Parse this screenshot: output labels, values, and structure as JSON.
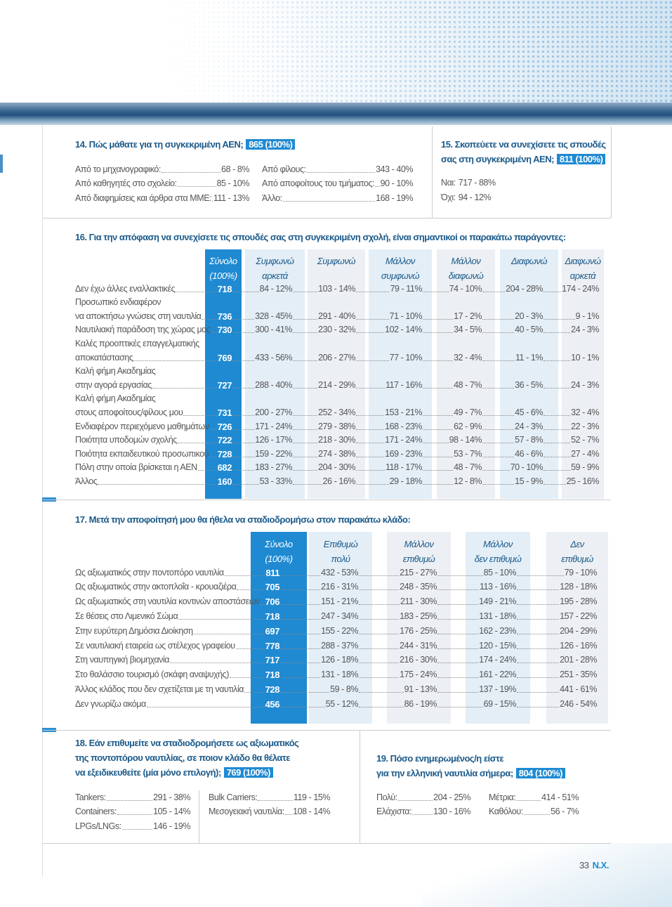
{
  "q14": {
    "title": "14. Πώς μάθατε για τη συγκεκριμένη ΑΕΝ;",
    "total": "865 (100%)",
    "columns": [
      [
        {
          "label": "Από το μηχανογραφικό:",
          "value": "68 - 8%"
        },
        {
          "label": "Από καθηγητές στο σχολείο:",
          "value": "85 - 10%"
        },
        {
          "label": "Από διαφημίσεις και άρθρα στα ΜΜΕ:",
          "value": "111 - 13%"
        }
      ],
      [
        {
          "label": "Από φίλους:",
          "value": "343 - 40%"
        },
        {
          "label": "Από αποφοίτους του τμήματος:",
          "value": "90 - 10%"
        },
        {
          "label": "Άλλο:",
          "value": "168 - 19%"
        }
      ]
    ]
  },
  "q15": {
    "title_lines": [
      "15. Σκοπεύετε να συνεχίσετε τις σπουδές",
      "σας στη συγκεκριμένη ΑΕΝ;"
    ],
    "total": "811 (100%)",
    "items": [
      {
        "label": "Ναι:",
        "value": "717 - 88%"
      },
      {
        "label": "Όχι:",
        "value": "94 - 12%"
      }
    ]
  },
  "q16": {
    "title": "16. Για την  απόφαση να συνεχίσετε τις σπουδές σας στη συγκεκριμένη σχολή, είναι σημαντικοί οι παρακάτω παράγοντες:",
    "headers": [
      [
        "Σύνολο",
        "(100%)"
      ],
      [
        "Συμφωνώ",
        "αρκετά"
      ],
      [
        "Συμφωνώ"
      ],
      [
        "Μάλλον",
        "συμφωνώ"
      ],
      [
        "Μάλλον",
        "διαφωνώ"
      ],
      [
        "Διαφωνώ"
      ],
      [
        "Διαφωνώ",
        "αρκετά"
      ]
    ],
    "rows": [
      {
        "label": [
          "Δεν έχω άλλες εναλλακτικές"
        ],
        "total": "718",
        "values": [
          "84 - 12%",
          "103 - 14%",
          "79 - 11%",
          "74 - 10%",
          "204 - 28%",
          "174 - 24%"
        ]
      },
      {
        "label": [
          "Προσωπικό ενδιαφέρον",
          "να αποκτήσω γνώσεις στη ναυτιλία"
        ],
        "total": "736",
        "values": [
          "328 - 45%",
          "291 - 40%",
          "71 - 10%",
          "17 - 2%",
          "20 - 3%",
          "9 - 1%"
        ]
      },
      {
        "label": [
          "Ναυτιλιακή παράδοση της χώρας μας"
        ],
        "total": "730",
        "values": [
          "300 - 41%",
          "230 - 32%",
          "102 - 14%",
          "34 - 5%",
          "40 - 5%",
          "24 - 3%"
        ]
      },
      {
        "label": [
          "Καλές προοπτικές επαγγελματικής",
          "αποκατάστασης"
        ],
        "total": "769",
        "values": [
          "433 - 56%",
          "206 - 27%",
          "77 - 10%",
          "32 - 4%",
          "11 - 1%",
          "10 - 1%"
        ]
      },
      {
        "label": [
          "Καλή φήμη Ακαδημίας",
          "στην αγορά εργασίας"
        ],
        "total": "727",
        "values": [
          "288 - 40%",
          "214 - 29%",
          "117 - 16%",
          "48 - 7%",
          "36 - 5%",
          "24 - 3%"
        ]
      },
      {
        "label": [
          "Καλή φήμη Ακαδημίας",
          "στους αποφοίτους/φίλους μου"
        ],
        "total": "731",
        "values": [
          "200 - 27%",
          "252 - 34%",
          "153 - 21%",
          "49 - 7%",
          "45 - 6%",
          "32 - 4%"
        ]
      },
      {
        "label": [
          "Ενδιαφέρον περιεχόμενο μαθημάτων"
        ],
        "total": "726",
        "values": [
          "171 - 24%",
          "279 - 38%",
          "168 - 23%",
          "62 - 9%",
          "24 - 3%",
          "22 - 3%"
        ]
      },
      {
        "label": [
          "Ποιότητα υποδομών σχολής"
        ],
        "total": "722",
        "values": [
          "126 - 17%",
          "218 - 30%",
          "171 - 24%",
          "98 - 14%",
          "57 - 8%",
          "52 - 7%"
        ]
      },
      {
        "label": [
          "Ποιότητα εκπαιδευτικού προσωπικού"
        ],
        "total": "728",
        "values": [
          "159 - 22%",
          "274 - 38%",
          "169 - 23%",
          "53 - 7%",
          "46 - 6%",
          "27 - 4%"
        ]
      },
      {
        "label": [
          "Πόλη στην οποία βρίσκεται η ΑΕΝ"
        ],
        "total": "682",
        "values": [
          "183 - 27%",
          "204 - 30%",
          "118 - 17%",
          "48 - 7%",
          "70 - 10%",
          "59 - 9%"
        ]
      },
      {
        "label": [
          "Άλλος"
        ],
        "total": "160",
        "values": [
          "53 - 33%",
          "26 - 16%",
          "29 - 18%",
          "12 - 8%",
          "15 - 9%",
          "25 - 16%"
        ]
      }
    ]
  },
  "q17": {
    "title": "17. Μετά την αποφοίτησή μου θα ήθελα να σταδιοδρομήσω στον παρακάτω κλάδο:",
    "headers": [
      [
        "Σύνολο",
        "(100%)"
      ],
      [
        "Επιθυμώ",
        "πολύ"
      ],
      [
        "Μάλλον",
        "επιθυμώ"
      ],
      [
        "Μάλλον",
        "δεν επιθυμώ"
      ],
      [
        "Δεν",
        "επιθυμώ"
      ]
    ],
    "rows": [
      {
        "label": [
          "Ως αξιωματικός στην ποντοπόρο ναυτιλία"
        ],
        "total": "811",
        "values": [
          "432 - 53%",
          "215 - 27%",
          "85 - 10%",
          "79 - 10%"
        ]
      },
      {
        "label": [
          "Ως αξιωματικός στην ακτοπλοΐα - κρουαζιέρα"
        ],
        "total": "705",
        "values": [
          "216 - 31%",
          "248 - 35%",
          "113 - 16%",
          "128 - 18%"
        ]
      },
      {
        "label": [
          "Ως αξιωματικός στη ναυτιλία κοντινών αποστάσεων"
        ],
        "total": "706",
        "values": [
          "151 - 21%",
          "211 - 30%",
          "149 - 21%",
          "195 - 28%"
        ]
      },
      {
        "label": [
          "Σε θέσεις στο Λιμενικό Σώμα"
        ],
        "total": "718",
        "values": [
          "247 - 34%",
          "183 - 25%",
          "131 - 18%",
          "157 - 22%"
        ]
      },
      {
        "label": [
          "Στην ευρύτερη Δημόσια Διοίκηση"
        ],
        "total": "697",
        "values": [
          "155 - 22%",
          "176 - 25%",
          "162 - 23%",
          "204 - 29%"
        ]
      },
      {
        "label": [
          "Σε ναυτιλιακή εταιρεία ως στέλεχος γραφείου"
        ],
        "total": "778",
        "values": [
          "288 - 37%",
          "244 - 31%",
          "120 - 15%",
          "126 - 16%"
        ]
      },
      {
        "label": [
          "Στη ναυπηγική βιομηχανία"
        ],
        "total": "717",
        "values": [
          "126 - 18%",
          "216 - 30%",
          "174 - 24%",
          "201 - 28%"
        ]
      },
      {
        "label": [
          "Στο θαλάσσιο τουρισμό (σκάφη αναψυχής)"
        ],
        "total": "718",
        "values": [
          "131 - 18%",
          "175 - 24%",
          "161 - 22%",
          "251 - 35%"
        ]
      },
      {
        "label": [
          "Άλλος κλάδος που δεν σχετίζεται με τη ναυτιλία"
        ],
        "total": "728",
        "values": [
          "59 - 8%",
          "91 - 13%",
          "137 - 19%",
          "441 - 61%"
        ]
      },
      {
        "label": [
          "Δεν γνωρίζω ακόμα"
        ],
        "total": "456",
        "values": [
          "55 - 12%",
          "86 - 19%",
          "69 - 15%",
          "246 - 54%"
        ]
      }
    ]
  },
  "q18": {
    "title_lines": [
      "18. Εάν επιθυμείτε να σταδιοδρομήσετε ως αξιωματικός",
      "της ποντοπόρου ναυτιλίας, σε ποιον κλάδο θα θέλατε",
      "να εξειδικευθείτε (μία μόνο επιλογή);"
    ],
    "total": "769 (100%)",
    "columns": [
      [
        {
          "label": "Tankers:",
          "value": "291 - 38%"
        },
        {
          "label": "Containers:",
          "value": "105 - 14%"
        },
        {
          "label": "LPGs/LNGs:",
          "value": "146 - 19%"
        }
      ],
      [
        {
          "label": "Bulk Carriers:",
          "value": "119 - 15%"
        },
        {
          "label": "Μεσογειακή ναυτιλία:",
          "value": "108 - 14%"
        }
      ]
    ]
  },
  "q19": {
    "title_lines": [
      "19. Πόσο ενημερωμένος/η είστε",
      "για την ελληνική ναυτιλία σήμερα;"
    ],
    "total": "804 (100%)",
    "columns": [
      [
        {
          "label": "Πολύ:",
          "value": "204 - 25%"
        },
        {
          "label": "Ελάχιστα:",
          "value": "130 - 16%"
        }
      ],
      [
        {
          "label": "Μέτρια:",
          "value": "414 - 51%"
        },
        {
          "label": "Καθόλου:",
          "value": "56 - 7%"
        }
      ]
    ]
  },
  "footer": {
    "page": "33",
    "mark": "Ν.Χ."
  }
}
